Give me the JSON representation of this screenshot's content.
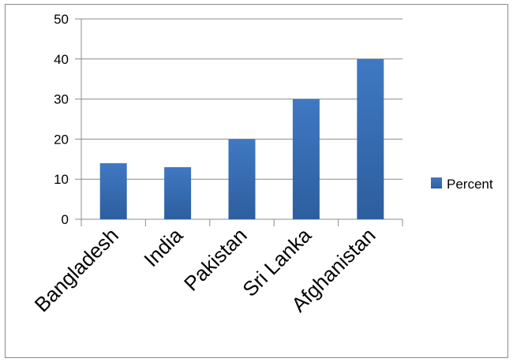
{
  "chart_data": {
    "type": "bar",
    "categories": [
      "Bangladesh",
      "India",
      "Pakistan",
      "Sri Lanka",
      "Afghanistan"
    ],
    "series": [
      {
        "name": "Percent",
        "values": [
          14,
          13,
          20,
          30,
          40
        ]
      }
    ],
    "ylim": [
      0,
      50
    ],
    "yticks": [
      0,
      10,
      20,
      30,
      40,
      50
    ],
    "grid": true,
    "legend": "right",
    "title": "",
    "xlabel": "",
    "ylabel": "",
    "colors": {
      "bar": "#3b70b6",
      "bar_dark": "#2c5a97",
      "grid": "#8c8c8c",
      "axis": "#8c8c8c"
    }
  }
}
